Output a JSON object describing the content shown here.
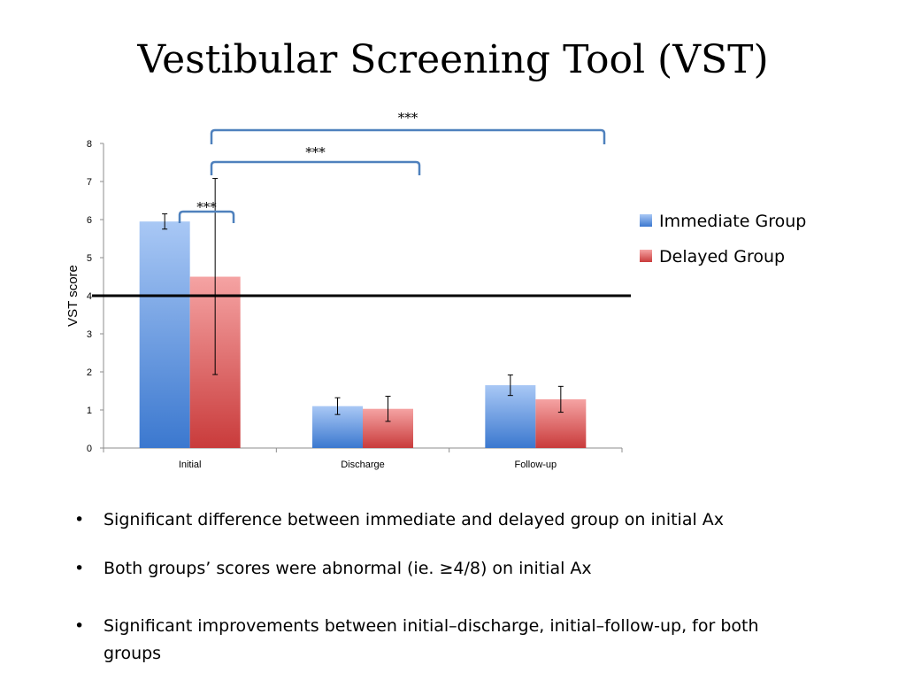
{
  "slide": {
    "title": "Vestibular Screening Tool (VST)"
  },
  "chart_data": {
    "type": "bar",
    "title": "",
    "xlabel": "",
    "ylabel": "VST score",
    "ylim": [
      0,
      8
    ],
    "yticks": [
      "0",
      "1",
      "2",
      "3",
      "4",
      "5",
      "6",
      "7",
      "8"
    ],
    "categories": [
      "Initial",
      "Discharge",
      "Follow-up"
    ],
    "series": [
      {
        "name": "Immediate Group",
        "values": [
          5.95,
          1.1,
          1.65
        ],
        "error_low": [
          5.75,
          0.88,
          1.38
        ],
        "error_high": [
          6.15,
          1.32,
          1.92
        ],
        "color": "#4f81bd"
      },
      {
        "name": "Delayed Group",
        "values": [
          4.5,
          1.03,
          1.28
        ],
        "error_low": [
          1.93,
          0.7,
          0.94
        ],
        "error_high": [
          7.08,
          1.36,
          1.62
        ],
        "color": "#d34a4a"
      }
    ],
    "reference_line": {
      "y": 4
    },
    "significance_brackets": [
      {
        "label": "***",
        "from_category": "Initial",
        "to_category": "Initial"
      },
      {
        "label": "***",
        "from_category": "Initial",
        "to_category": "Discharge"
      },
      {
        "label": "***",
        "from_category": "Initial",
        "to_category": "Follow-up"
      }
    ],
    "bracket_color": "#4f81bd",
    "legend_position": "right",
    "grid": false
  },
  "bullets": [
    "Significant difference between immediate and delayed group on initial Ax",
    "Both groups’ scores were abnormal (ie. ≥4/8) on initial Ax",
    "Significant improvements between initial–discharge, initial–follow-up, for both groups"
  ],
  "bullet_symbol": "•"
}
